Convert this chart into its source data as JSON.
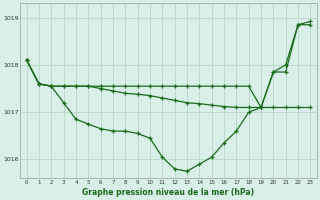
{
  "background_color": "#d8f0e8",
  "plot_bg_color": "#d8f0e8",
  "grid_color": "#b8d8c8",
  "line_color": "#1a6b1a",
  "title": "Graphe pression niveau de la mer (hPa)",
  "xlim": [
    -0.5,
    23.5
  ],
  "ylim": [
    1015.6,
    1019.3
  ],
  "yticks": [
    1016,
    1017,
    1018,
    1019
  ],
  "xticks": [
    0,
    1,
    2,
    3,
    4,
    5,
    6,
    7,
    8,
    9,
    10,
    11,
    12,
    13,
    14,
    15,
    16,
    17,
    18,
    19,
    20,
    21,
    22,
    23
  ],
  "series": [
    {
      "x": [
        0,
        1,
        2,
        3,
        4,
        5,
        6,
        7,
        8,
        9,
        10,
        11,
        12,
        13,
        14,
        15,
        16,
        17,
        18,
        19,
        20,
        21,
        22,
        23
      ],
      "y": [
        1018.1,
        1017.6,
        1017.55,
        1017.2,
        1016.85,
        1016.75,
        1016.65,
        1016.6,
        1016.6,
        1016.55,
        1016.45,
        1016.05,
        1015.8,
        1015.75,
        1015.9,
        1016.05,
        1016.35,
        1016.6,
        1017.0,
        1017.1,
        1017.85,
        1017.85,
        1018.85,
        1018.85
      ]
    },
    {
      "x": [
        0,
        1,
        2,
        3,
        4,
        5,
        6,
        7,
        8,
        9,
        10,
        11,
        12,
        13,
        14,
        15,
        16,
        17,
        18,
        19,
        20,
        21,
        22,
        23
      ],
      "y": [
        1018.1,
        1017.6,
        1017.55,
        1017.55,
        1017.55,
        1017.55,
        1017.55,
        1017.55,
        1017.55,
        1017.55,
        1017.55,
        1017.55,
        1017.55,
        1017.55,
        1017.55,
        1017.55,
        1017.55,
        1017.55,
        1017.55,
        1017.1,
        1017.85,
        1018.0,
        1018.85,
        1018.92
      ]
    },
    {
      "x": [
        0,
        1,
        2,
        3,
        4,
        5,
        6,
        7,
        8,
        9,
        10,
        11,
        12,
        13,
        14,
        15,
        16,
        17,
        18,
        19,
        20,
        21,
        22,
        23
      ],
      "y": [
        1018.1,
        1017.6,
        1017.55,
        1017.55,
        1017.55,
        1017.55,
        1017.5,
        1017.45,
        1017.4,
        1017.38,
        1017.35,
        1017.3,
        1017.25,
        1017.2,
        1017.18,
        1017.15,
        1017.12,
        1017.1,
        1017.1,
        1017.1,
        1017.1,
        1017.1,
        1017.1,
        1017.1
      ]
    }
  ]
}
